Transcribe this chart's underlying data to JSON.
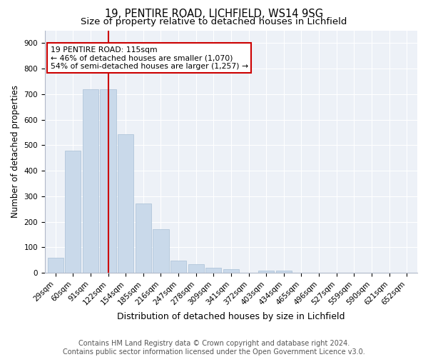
{
  "title1": "19, PENTIRE ROAD, LICHFIELD, WS14 9SG",
  "title2": "Size of property relative to detached houses in Lichfield",
  "xlabel": "Distribution of detached houses by size in Lichfield",
  "ylabel": "Number of detached properties",
  "footer1": "Contains HM Land Registry data © Crown copyright and database right 2024.",
  "footer2": "Contains public sector information licensed under the Open Government Licence v3.0.",
  "categories": [
    "29sqm",
    "60sqm",
    "91sqm",
    "122sqm",
    "154sqm",
    "185sqm",
    "216sqm",
    "247sqm",
    "278sqm",
    "309sqm",
    "341sqm",
    "372sqm",
    "403sqm",
    "434sqm",
    "465sqm",
    "496sqm",
    "527sqm",
    "559sqm",
    "590sqm",
    "621sqm",
    "652sqm"
  ],
  "values": [
    60,
    480,
    720,
    720,
    543,
    272,
    172,
    47,
    35,
    20,
    15,
    0,
    10,
    10,
    0,
    0,
    0,
    0,
    0,
    0,
    0
  ],
  "bar_color": "#c9d9ea",
  "bar_edge_color": "#a8c0d6",
  "vline_x": 3.0,
  "vline_color": "#cc0000",
  "annotation_text": "19 PENTIRE ROAD: 115sqm\n← 46% of detached houses are smaller (1,070)\n54% of semi-detached houses are larger (1,257) →",
  "annotation_box_color": "white",
  "annotation_box_edge": "#cc0000",
  "ylim": [
    0,
    950
  ],
  "yticks": [
    0,
    100,
    200,
    300,
    400,
    500,
    600,
    700,
    800,
    900
  ],
  "background_color": "#edf1f7",
  "grid_color": "white",
  "title1_fontsize": 10.5,
  "title2_fontsize": 9.5,
  "xlabel_fontsize": 9,
  "ylabel_fontsize": 8.5,
  "tick_fontsize": 7.5,
  "footer_fontsize": 7,
  "annotation_fontsize": 7.8
}
